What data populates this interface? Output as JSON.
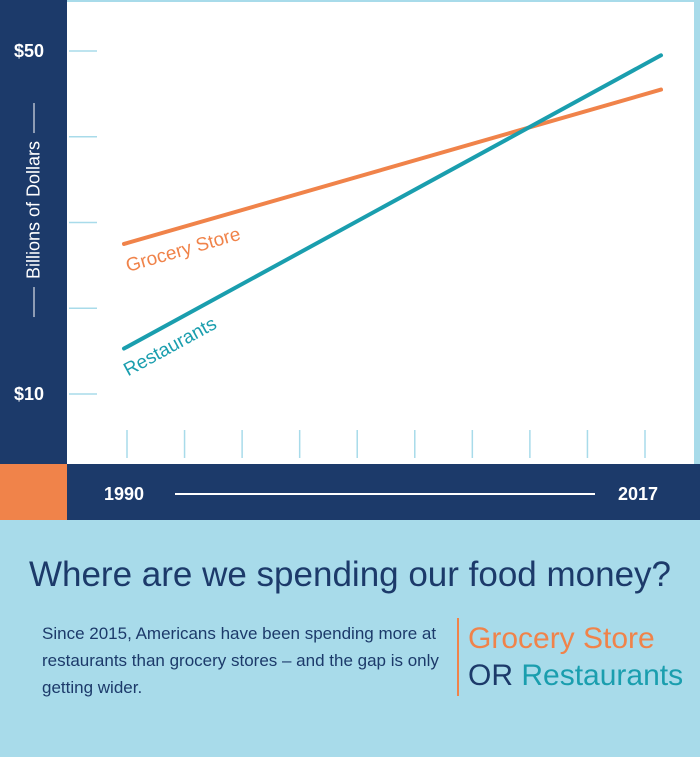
{
  "colors": {
    "navy": "#1c3a6a",
    "orange": "#f0834a",
    "teal": "#1a9eae",
    "light_blue": "#a8dbea",
    "plot_bg": "#ffffff"
  },
  "chart_data": {
    "type": "line",
    "title": "",
    "ylabel": "Billions of Dollars",
    "xlabel": "",
    "x_labels": [
      "1990",
      "2017"
    ],
    "xlim": [
      1990,
      2017
    ],
    "ylim": [
      5,
      55
    ],
    "y_ticks": [
      10,
      20,
      30,
      40,
      50
    ],
    "y_tick_labels": [
      "$10",
      "",
      "",
      "",
      "$50"
    ],
    "grid": false,
    "legend": "inline labels on lines",
    "series": [
      {
        "name": "Grocery Store",
        "color": "#f0834a",
        "x": [
          1990,
          2017
        ],
        "y": [
          27.5,
          45.5
        ]
      },
      {
        "name": "Restaurants",
        "color": "#1a9eae",
        "x": [
          1990,
          2017
        ],
        "y": [
          15.3,
          49.5
        ]
      }
    ]
  },
  "text": {
    "headline": "Where are we spending our food money?",
    "description": "Since 2015, Americans have been spending more at restaurants than grocery stores – and the gap is only getting wider.",
    "tagline_grocery": "Grocery Store",
    "tagline_or": "OR",
    "tagline_restaurants": "Restaurants"
  }
}
